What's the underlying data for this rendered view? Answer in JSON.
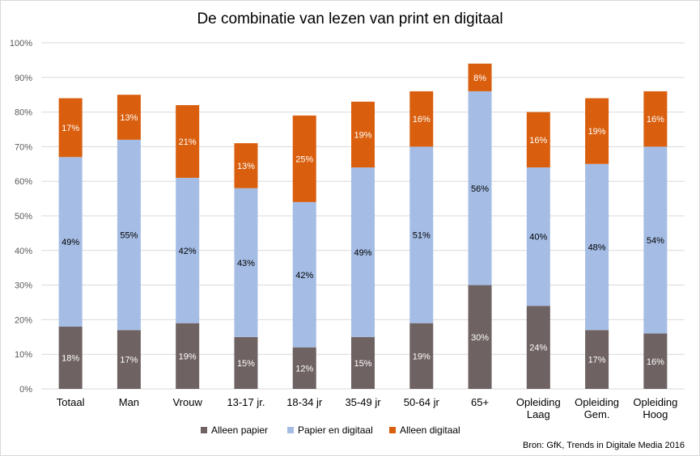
{
  "chart_data": {
    "type": "bar",
    "stacked": true,
    "title": "De combinatie van lezen van print en digitaal",
    "categories": [
      [
        "Totaal"
      ],
      [
        "Man"
      ],
      [
        "Vrouw"
      ],
      [
        "13-17 jr."
      ],
      [
        "18-34 jr"
      ],
      [
        "35-49 jr"
      ],
      [
        "50-64 jr"
      ],
      [
        "65+"
      ],
      [
        "Opleiding",
        "Laag"
      ],
      [
        "Opleiding",
        "Gem."
      ],
      [
        "Opleiding",
        "Hoog"
      ]
    ],
    "series": [
      {
        "name": "Alleen papier",
        "color": "#6f6262",
        "labelColor": "#ffffff",
        "values": [
          18,
          17,
          19,
          15,
          12,
          15,
          19,
          30,
          24,
          17,
          16
        ],
        "labels": [
          "18%",
          "17%",
          "19%",
          "15%",
          "12%",
          "15%",
          "19%",
          "30%",
          "24%",
          "17%",
          "16%"
        ]
      },
      {
        "name": "Papier en digitaal",
        "color": "#a5bde5",
        "labelColor": "#000000",
        "values": [
          49,
          55,
          42,
          43,
          42,
          49,
          51,
          56,
          40,
          48,
          54
        ],
        "labels": [
          "49%",
          "55%",
          "42%",
          "43%",
          "42%",
          "49%",
          "51%",
          "56%",
          "40%",
          "48%",
          "54%"
        ]
      },
      {
        "name": "Alleen digitaal",
        "color": "#d95f0e",
        "labelColor": "#ffffff",
        "values": [
          17,
          13,
          21,
          13,
          25,
          19,
          16,
          8,
          16,
          19,
          16
        ],
        "labels": [
          "17%",
          "13%",
          "21%",
          "13%",
          "25%",
          "19%",
          "16%",
          "8%",
          "16%",
          "19%",
          "16%"
        ]
      }
    ],
    "ylim": [
      0,
      100
    ],
    "yticks": [
      "0%",
      "10%",
      "20%",
      "30%",
      "40%",
      "50%",
      "60%",
      "70%",
      "80%",
      "90%",
      "100%"
    ],
    "grid": true,
    "legend": "bottom"
  },
  "source": "Bron: GfK, Trends in Digitale Media 2016"
}
